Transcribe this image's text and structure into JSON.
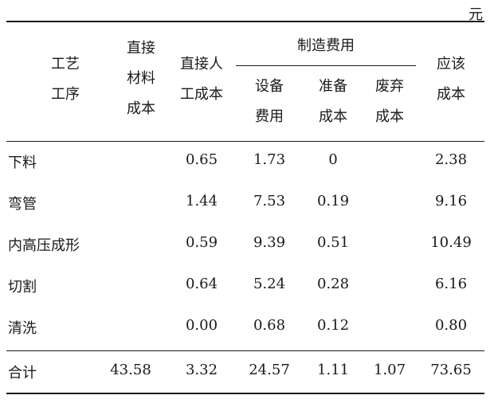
{
  "unit": "元",
  "header": {
    "process": [
      "工艺",
      "工序"
    ],
    "direct_material": [
      "直接",
      "材料",
      "成本"
    ],
    "direct_labor": [
      "直接人",
      "工成本"
    ],
    "manufacturing": "制造费用",
    "equipment": [
      "设备",
      "费用"
    ],
    "preparation": [
      "准备",
      "成本"
    ],
    "scrap": [
      "废弃",
      "成本"
    ],
    "total_cost": [
      "应该",
      "成本"
    ]
  },
  "rows": [
    {
      "process": "下料",
      "material": "",
      "labor": "0.65",
      "equipment": "1.73",
      "prep": "0",
      "scrap": "",
      "total": "2.38"
    },
    {
      "process": "弯管",
      "material": "",
      "labor": "1.44",
      "equipment": "7.53",
      "prep": "0.19",
      "scrap": "",
      "total": "9.16"
    },
    {
      "process": "内高压成形",
      "material": "",
      "labor": "0.59",
      "equipment": "9.39",
      "prep": "0.51",
      "scrap": "",
      "total": "10.49"
    },
    {
      "process": "切割",
      "material": "",
      "labor": "0.64",
      "equipment": "5.24",
      "prep": "0.28",
      "scrap": "",
      "total": "6.16"
    },
    {
      "process": "清洗",
      "material": "",
      "labor": "0.00",
      "equipment": "0.68",
      "prep": "0.12",
      "scrap": "",
      "total": "0.80"
    }
  ],
  "sum": {
    "process": "合计",
    "material": "43.58",
    "labor": "3.32",
    "equipment": "24.57",
    "prep": "1.11",
    "scrap": "1.07",
    "total": "73.65"
  }
}
